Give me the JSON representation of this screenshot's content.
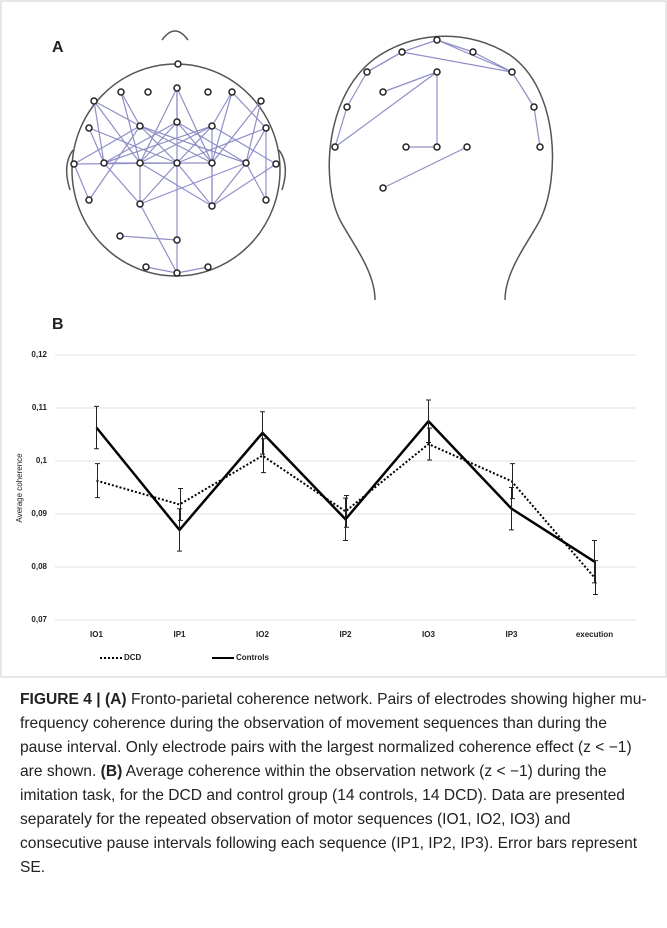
{
  "panel_labels": [
    "A",
    "B"
  ],
  "chart_data": {
    "type": "line",
    "ylabel": "Average coherence",
    "categories": [
      "IO1",
      "IP1",
      "IO2",
      "IP2",
      "IO3",
      "IP3",
      "execution"
    ],
    "series": [
      {
        "name": "DCD",
        "color": "#000000",
        "dash": "dotted",
        "values": [
          0.0963,
          0.0918,
          0.101,
          0.0905,
          0.1032,
          0.0962,
          0.078
        ],
        "errors": [
          0.0032,
          0.003,
          0.0032,
          0.003,
          0.003,
          0.0033,
          0.0032
        ]
      },
      {
        "name": "Controls",
        "color": "#000000",
        "dash": "solid",
        "values": [
          0.1063,
          0.087,
          0.1053,
          0.089,
          0.1075,
          0.091,
          0.081
        ],
        "errors": [
          0.004,
          0.004,
          0.004,
          0.004,
          0.004,
          0.004,
          0.004
        ]
      }
    ],
    "ylim": [
      0.07,
      0.12
    ],
    "yticks": [
      {
        "value": 0.07,
        "label": "0,07"
      },
      {
        "value": 0.08,
        "label": "0,08"
      },
      {
        "value": 0.09,
        "label": "0,09"
      },
      {
        "value": 0.1,
        "label": "0,1"
      },
      {
        "value": 0.11,
        "label": "0,11"
      },
      {
        "value": 0.12,
        "label": "0,12"
      }
    ],
    "grid": true,
    "legend": "bottom"
  },
  "caption": [
    {
      "text": "FIGURE 4 | (A)",
      "bold": true
    },
    {
      "text": "Fronto-parietal coherence network. Pairs of electrodes showing higher mu-frequency coherence during the observation of movement sequences than during the pause interval. Only electrode pairs with the largest normalized coherence effect (z < −1) are shown.",
      "bold": false
    },
    {
      "text": "(B)",
      "bold": true
    },
    {
      "text": "Average coherence within the observation network (z < −1) during the imitation task, for the DCD and control group (14 controls, 14 DCD). Data are presented separately for the repeated observation of motor sequences (IO1, IO2, IO3) and consecutive pause intervals following each sequence (IP1, IP2, IP3). Error bars represent SE.",
      "bold": false
    }
  ]
}
